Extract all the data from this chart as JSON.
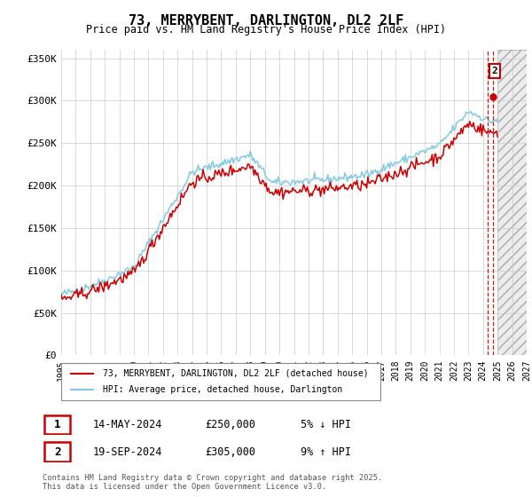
{
  "title": "73, MERRYBENT, DARLINGTON, DL2 2LF",
  "subtitle": "Price paid vs. HM Land Registry's House Price Index (HPI)",
  "ylim": [
    0,
    360000
  ],
  "yticks": [
    0,
    50000,
    100000,
    150000,
    200000,
    250000,
    300000,
    350000
  ],
  "ytick_labels": [
    "£0",
    "£50K",
    "£100K",
    "£150K",
    "£200K",
    "£250K",
    "£300K",
    "£350K"
  ],
  "x_start_year": 1995,
  "x_end_year": 2027,
  "hpi_color": "#7ec8e3",
  "price_color": "#cc0000",
  "marker1_date": "14-MAY-2024",
  "marker1_price": 250000,
  "marker1_pct": "5%",
  "marker1_dir": "↓",
  "marker2_date": "19-SEP-2024",
  "marker2_price": 305000,
  "marker2_pct": "9%",
  "marker2_dir": "↑",
  "legend_label1": "73, MERRYBENT, DARLINGTON, DL2 2LF (detached house)",
  "legend_label2": "HPI: Average price, detached house, Darlington",
  "footer": "Contains HM Land Registry data © Crown copyright and database right 2025.\nThis data is licensed under the Open Government Licence v3.0."
}
